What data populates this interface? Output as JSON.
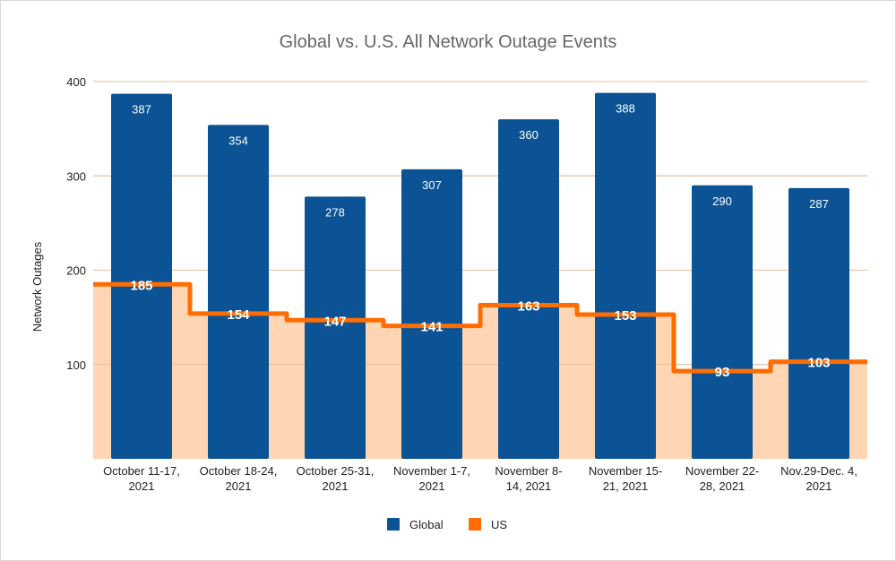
{
  "chart_data": {
    "type": "bar",
    "title": "Global vs. U.S. All Network Outage Events",
    "xlabel": "",
    "ylabel": "Network Outages",
    "ylim": [
      0,
      400
    ],
    "yticks": [
      100,
      200,
      300,
      400
    ],
    "grid": true,
    "legend_position": "bottom",
    "categories": [
      [
        "October 11-17,",
        "2021"
      ],
      [
        "October 18-24,",
        "2021"
      ],
      [
        "October 25-31,",
        "2021"
      ],
      [
        "November 1-7,",
        "2021"
      ],
      [
        "November 8-",
        "14, 2021"
      ],
      [
        "November 15-",
        "21, 2021"
      ],
      [
        "November 22-",
        "28, 2021"
      ],
      [
        "Nov.29-Dec. 4,",
        "2021"
      ]
    ],
    "series": [
      {
        "name": "Global",
        "type": "bar",
        "color": "#0b5394",
        "values": [
          387,
          354,
          278,
          307,
          360,
          388,
          290,
          287
        ]
      },
      {
        "name": "US",
        "type": "stepped-area",
        "color": "#ff6d01",
        "fill_color": "#ffd5b3",
        "values": [
          185,
          154,
          147,
          141,
          163,
          153,
          93,
          103
        ]
      }
    ]
  }
}
